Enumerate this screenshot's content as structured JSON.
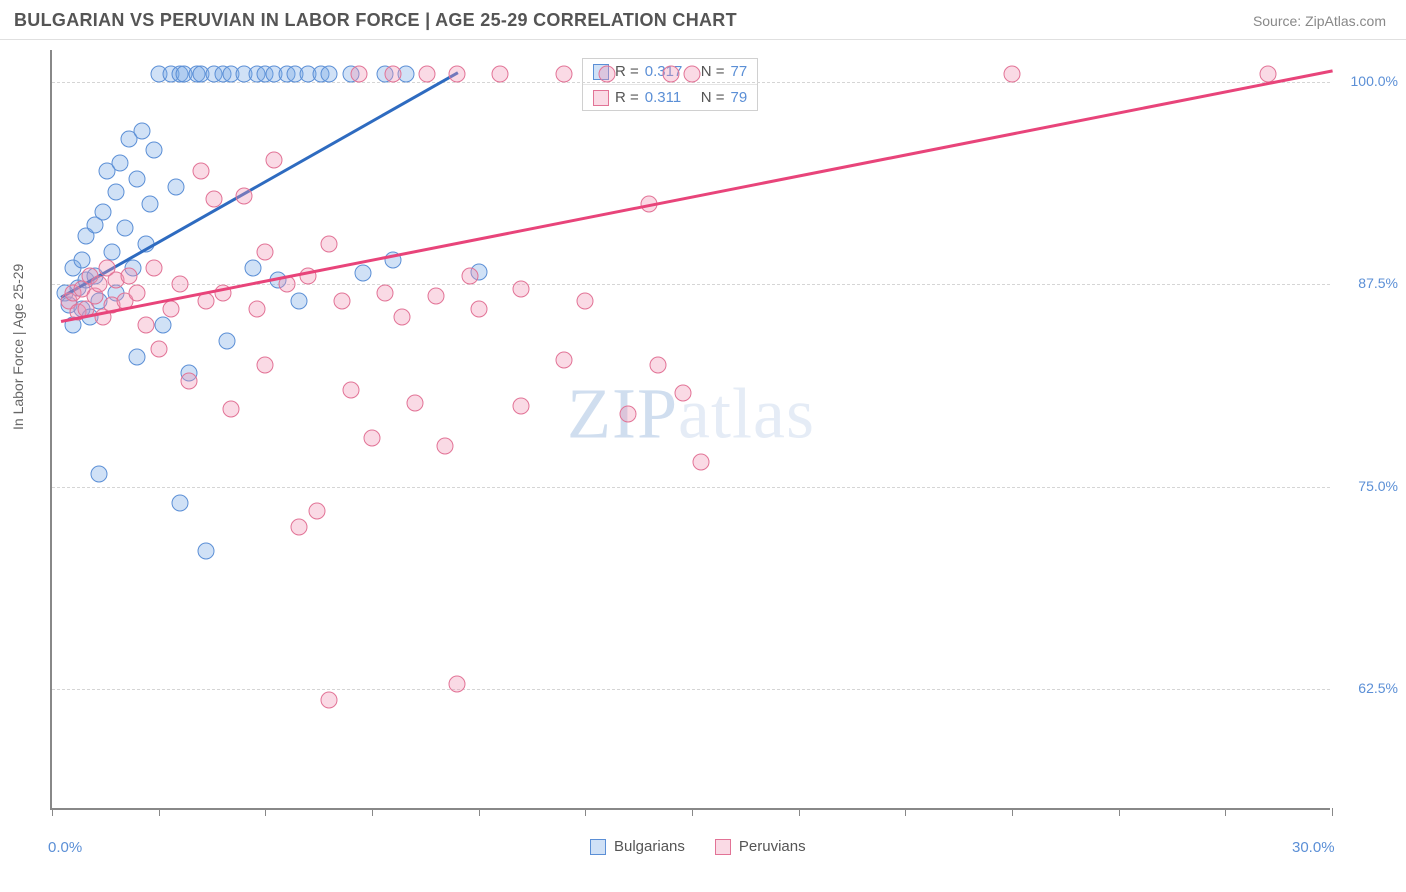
{
  "header": {
    "title": "BULGARIAN VS PERUVIAN IN LABOR FORCE | AGE 25-29 CORRELATION CHART",
    "source": "Source: ZipAtlas.com"
  },
  "watermark": {
    "part1": "ZIP",
    "part2": "atlas"
  },
  "chart": {
    "type": "scatter",
    "y_axis_title": "In Labor Force | Age 25-29",
    "xlim": [
      0,
      30
    ],
    "ylim": [
      55,
      102
    ],
    "xtick_positions": [
      0,
      2.5,
      5,
      7.5,
      10,
      12.5,
      15,
      17.5,
      20,
      22.5,
      25,
      27.5,
      30
    ],
    "x_labels": [
      {
        "value": 0,
        "text": "0.0%"
      },
      {
        "value": 30,
        "text": "30.0%"
      }
    ],
    "y_gridlines": [
      {
        "value": 100.0,
        "text": "100.0%"
      },
      {
        "value": 87.5,
        "text": "87.5%"
      },
      {
        "value": 75.0,
        "text": "75.0%"
      },
      {
        "value": 62.5,
        "text": "62.5%"
      }
    ],
    "series": [
      {
        "name": "Bulgarians",
        "fill": "rgba(120, 170, 230, 0.35)",
        "stroke": "#5b8fd6",
        "line_color": "#2e6bc0",
        "R": "0.317",
        "N": "77",
        "trend": {
          "x1": 0.2,
          "y1": 86.8,
          "x2": 9.5,
          "y2": 100.7
        },
        "points": [
          [
            0.3,
            87.0
          ],
          [
            0.4,
            86.2
          ],
          [
            0.5,
            88.5
          ],
          [
            0.5,
            85.0
          ],
          [
            0.6,
            87.3
          ],
          [
            0.7,
            89.0
          ],
          [
            0.7,
            86.0
          ],
          [
            0.8,
            90.5
          ],
          [
            0.8,
            87.8
          ],
          [
            0.9,
            85.5
          ],
          [
            1.0,
            91.2
          ],
          [
            1.0,
            88.0
          ],
          [
            1.1,
            86.5
          ],
          [
            1.1,
            75.8
          ],
          [
            1.2,
            92.0
          ],
          [
            1.3,
            94.5
          ],
          [
            1.4,
            89.5
          ],
          [
            1.5,
            93.2
          ],
          [
            1.5,
            87.0
          ],
          [
            1.6,
            95.0
          ],
          [
            1.7,
            91.0
          ],
          [
            1.8,
            96.5
          ],
          [
            1.9,
            88.5
          ],
          [
            2.0,
            94.0
          ],
          [
            2.0,
            83.0
          ],
          [
            2.1,
            97.0
          ],
          [
            2.2,
            90.0
          ],
          [
            2.3,
            92.5
          ],
          [
            2.4,
            95.8
          ],
          [
            2.5,
            100.5
          ],
          [
            2.6,
            85.0
          ],
          [
            2.8,
            100.5
          ],
          [
            2.9,
            93.5
          ],
          [
            3.0,
            100.5
          ],
          [
            3.0,
            74.0
          ],
          [
            3.1,
            100.5
          ],
          [
            3.2,
            82.0
          ],
          [
            3.4,
            100.5
          ],
          [
            3.5,
            100.5
          ],
          [
            3.6,
            71.0
          ],
          [
            3.8,
            100.5
          ],
          [
            4.0,
            100.5
          ],
          [
            4.1,
            84.0
          ],
          [
            4.2,
            100.5
          ],
          [
            4.5,
            100.5
          ],
          [
            4.7,
            88.5
          ],
          [
            4.8,
            100.5
          ],
          [
            5.0,
            100.5
          ],
          [
            5.2,
            100.5
          ],
          [
            5.3,
            87.8
          ],
          [
            5.5,
            100.5
          ],
          [
            5.7,
            100.5
          ],
          [
            5.8,
            86.5
          ],
          [
            6.0,
            100.5
          ],
          [
            6.3,
            100.5
          ],
          [
            6.5,
            100.5
          ],
          [
            7.0,
            100.5
          ],
          [
            7.3,
            88.2
          ],
          [
            7.8,
            100.5
          ],
          [
            8.0,
            89.0
          ],
          [
            8.3,
            100.5
          ],
          [
            10.0,
            88.3
          ]
        ]
      },
      {
        "name": "Peruvians",
        "fill": "rgba(240, 150, 180, 0.35)",
        "stroke": "#e27396",
        "line_color": "#e8447a",
        "R": "0.311",
        "N": "79",
        "trend": {
          "x1": 0.2,
          "y1": 85.3,
          "x2": 30.0,
          "y2": 100.8
        },
        "points": [
          [
            0.4,
            86.5
          ],
          [
            0.5,
            87.0
          ],
          [
            0.6,
            85.8
          ],
          [
            0.7,
            87.2
          ],
          [
            0.8,
            86.0
          ],
          [
            0.9,
            88.0
          ],
          [
            1.0,
            86.8
          ],
          [
            1.1,
            87.5
          ],
          [
            1.2,
            85.5
          ],
          [
            1.3,
            88.5
          ],
          [
            1.4,
            86.2
          ],
          [
            1.5,
            87.8
          ],
          [
            1.7,
            86.5
          ],
          [
            1.8,
            88.0
          ],
          [
            2.0,
            87.0
          ],
          [
            2.2,
            85.0
          ],
          [
            2.4,
            88.5
          ],
          [
            2.5,
            83.5
          ],
          [
            2.8,
            86.0
          ],
          [
            3.0,
            87.5
          ],
          [
            3.2,
            81.5
          ],
          [
            3.5,
            94.5
          ],
          [
            3.6,
            86.5
          ],
          [
            3.8,
            92.8
          ],
          [
            4.0,
            87.0
          ],
          [
            4.2,
            79.8
          ],
          [
            4.5,
            93.0
          ],
          [
            4.8,
            86.0
          ],
          [
            5.0,
            89.5
          ],
          [
            5.0,
            82.5
          ],
          [
            5.2,
            95.2
          ],
          [
            5.5,
            87.5
          ],
          [
            5.8,
            72.5
          ],
          [
            6.0,
            88.0
          ],
          [
            6.2,
            73.5
          ],
          [
            6.5,
            90.0
          ],
          [
            6.5,
            61.8
          ],
          [
            6.8,
            86.5
          ],
          [
            7.0,
            81.0
          ],
          [
            7.2,
            100.5
          ],
          [
            7.5,
            78.0
          ],
          [
            7.8,
            87.0
          ],
          [
            8.0,
            100.5
          ],
          [
            8.2,
            85.5
          ],
          [
            8.5,
            80.2
          ],
          [
            8.8,
            100.5
          ],
          [
            9.0,
            86.8
          ],
          [
            9.2,
            77.5
          ],
          [
            9.5,
            100.5
          ],
          [
            9.5,
            62.8
          ],
          [
            9.8,
            88.0
          ],
          [
            10.0,
            86.0
          ],
          [
            10.5,
            100.5
          ],
          [
            11.0,
            87.2
          ],
          [
            11.0,
            80.0
          ],
          [
            12.0,
            100.5
          ],
          [
            12.0,
            82.8
          ],
          [
            12.5,
            86.5
          ],
          [
            13.0,
            100.5
          ],
          [
            13.5,
            79.5
          ],
          [
            14.0,
            92.5
          ],
          [
            14.2,
            82.5
          ],
          [
            14.5,
            100.5
          ],
          [
            14.8,
            80.8
          ],
          [
            15.0,
            100.5
          ],
          [
            15.2,
            76.5
          ],
          [
            22.5,
            100.5
          ],
          [
            28.5,
            100.5
          ]
        ]
      }
    ],
    "legend_top_labels": {
      "R": "R =",
      "N": "N ="
    },
    "legend_bottom": [
      {
        "label": "Bulgarians",
        "fill": "rgba(120,170,230,0.35)",
        "stroke": "#5b8fd6"
      },
      {
        "label": "Peruvians",
        "fill": "rgba(240,150,180,0.35)",
        "stroke": "#e27396"
      }
    ],
    "background_color": "#ffffff",
    "grid_color": "#d5d5d5",
    "axis_color": "#888888",
    "label_color": "#5b8fd6",
    "point_radius": 8.5
  }
}
